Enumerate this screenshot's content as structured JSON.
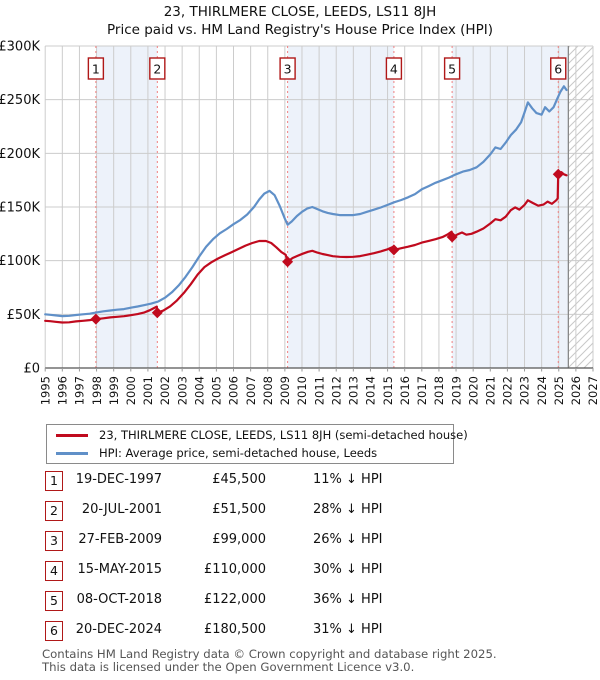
{
  "title": {
    "line1": "23, THIRLMERE CLOSE, LEEDS, LS11 8JH",
    "line2": "Price paid vs. HM Land Registry's House Price Index (HPI)"
  },
  "legend": [
    {
      "label": "23, THIRLMERE CLOSE, LEEDS, LS11 8JH (semi-detached house)",
      "color": "#c00a1e"
    },
    {
      "label": "HPI: Average price, semi-detached house, Leeds",
      "color": "#6090c8"
    }
  ],
  "footer": {
    "line1": "Contains HM Land Registry data © Crown copyright and database right 2025.",
    "line2": "This data is licensed under the Open Government Licence v3.0."
  },
  "colors": {
    "price_line": "#c00a1e",
    "hpi_line": "#6090c8",
    "sale_dashed_line": "#f08080",
    "marker_box_border": "#b01818",
    "shaded_band": "#edf2fa",
    "gridline": "#cccccc",
    "axis": "#555555",
    "hatch": "#c8c8c8",
    "hatch_edge": "#888888"
  },
  "chart_data": {
    "type": "line",
    "title": "Price paid vs. HM Land Registry's House Price Index (HPI)",
    "units": "GBP thousands",
    "x_range": [
      1995,
      2027
    ],
    "ylim": [
      0,
      300
    ],
    "y_ticks": [
      {
        "v": 0,
        "label": "£0"
      },
      {
        "v": 50,
        "label": "£50K"
      },
      {
        "v": 100,
        "label": "£100K"
      },
      {
        "v": 150,
        "label": "£150K"
      },
      {
        "v": 200,
        "label": "£200K"
      },
      {
        "v": 250,
        "label": "£250K"
      },
      {
        "v": 300,
        "label": "£300K"
      }
    ],
    "grid": true,
    "legend_position": "below",
    "future_hatch_start": 2025.56,
    "data_end": 2025.45,
    "shaded_bands": [
      [
        1997.96,
        2001.55
      ],
      [
        2009.16,
        2015.37
      ],
      [
        2018.77,
        2025.56
      ]
    ],
    "sales": [
      {
        "n": "1",
        "date": "19-DEC-1997",
        "price_label": "£45,500",
        "vs_hpi": "11% ↓ HPI",
        "year": 1997.96,
        "price_k": 45.5
      },
      {
        "n": "2",
        "date": "20-JUL-2001",
        "price_label": "£51,500",
        "vs_hpi": "28% ↓ HPI",
        "year": 2001.55,
        "price_k": 51.5
      },
      {
        "n": "3",
        "date": "27-FEB-2009",
        "price_label": "£99,000",
        "vs_hpi": "26% ↓ HPI",
        "year": 2009.16,
        "price_k": 99
      },
      {
        "n": "4",
        "date": "15-MAY-2015",
        "price_label": "£110,000",
        "vs_hpi": "30% ↓ HPI",
        "year": 2015.37,
        "price_k": 110
      },
      {
        "n": "5",
        "date": "08-OCT-2018",
        "price_label": "£122,000",
        "vs_hpi": "36% ↓ HPI",
        "year": 2018.77,
        "price_k": 122
      },
      {
        "n": "6",
        "date": "20-DEC-2024",
        "price_label": "£180,500",
        "vs_hpi": "31% ↓ HPI",
        "year": 2024.97,
        "price_k": 180.5
      }
    ],
    "series": [
      {
        "name": "23, THIRLMERE CLOSE, LEEDS, LS11 8JH (semi-detached house)",
        "color": "#c00a1e",
        "points": [
          [
            1995,
            44
          ],
          [
            1995.3,
            43.6
          ],
          [
            1995.6,
            43
          ],
          [
            1996,
            42.4
          ],
          [
            1996.4,
            42.6
          ],
          [
            1996.8,
            43.4
          ],
          [
            1997.2,
            44
          ],
          [
            1997.6,
            44.6
          ],
          [
            1997.96,
            45.5
          ],
          [
            1998.4,
            46.3
          ],
          [
            1998.8,
            47.1
          ],
          [
            1999.2,
            47.7
          ],
          [
            1999.6,
            48.3
          ],
          [
            2000,
            49.2
          ],
          [
            2000.4,
            50.2
          ],
          [
            2000.8,
            51.8
          ],
          [
            2001.1,
            53.8
          ],
          [
            2001.35,
            55.8
          ],
          [
            2001.52,
            57.2
          ],
          [
            2001.55,
            51.5
          ],
          [
            2001.9,
            53.5
          ],
          [
            2002.3,
            57.5
          ],
          [
            2002.7,
            63
          ],
          [
            2003.1,
            70
          ],
          [
            2003.5,
            78
          ],
          [
            2003.9,
            87
          ],
          [
            2004.3,
            94
          ],
          [
            2004.7,
            98.5
          ],
          [
            2005.1,
            102
          ],
          [
            2005.5,
            105
          ],
          [
            2005.9,
            108
          ],
          [
            2006.3,
            111
          ],
          [
            2006.7,
            114
          ],
          [
            2007.1,
            116.5
          ],
          [
            2007.5,
            118.3
          ],
          [
            2007.9,
            118.3
          ],
          [
            2008.2,
            116.5
          ],
          [
            2008.5,
            112.5
          ],
          [
            2008.8,
            108
          ],
          [
            2009.05,
            105.5
          ],
          [
            2009.16,
            99
          ],
          [
            2009.45,
            102.5
          ],
          [
            2009.75,
            104.5
          ],
          [
            2010.05,
            106.5
          ],
          [
            2010.35,
            108.3
          ],
          [
            2010.6,
            109.2
          ],
          [
            2010.9,
            107.5
          ],
          [
            2011.2,
            106.2
          ],
          [
            2011.5,
            105.2
          ],
          [
            2011.8,
            104.2
          ],
          [
            2012.2,
            103.6
          ],
          [
            2012.6,
            103.4
          ],
          [
            2013,
            103.6
          ],
          [
            2013.4,
            104.3
          ],
          [
            2013.8,
            105.6
          ],
          [
            2014.2,
            107
          ],
          [
            2014.6,
            108.6
          ],
          [
            2015,
            110.6
          ],
          [
            2015.25,
            112.4
          ],
          [
            2015.34,
            113
          ],
          [
            2015.37,
            110
          ],
          [
            2015.8,
            111.6
          ],
          [
            2016.2,
            113
          ],
          [
            2016.6,
            114.6
          ],
          [
            2017,
            116.8
          ],
          [
            2017.4,
            118.4
          ],
          [
            2017.8,
            120
          ],
          [
            2018.2,
            122
          ],
          [
            2018.5,
            124.4
          ],
          [
            2018.74,
            127
          ],
          [
            2018.77,
            122
          ],
          [
            2019.1,
            124.6
          ],
          [
            2019.35,
            126.2
          ],
          [
            2019.6,
            124.2
          ],
          [
            2019.9,
            125
          ],
          [
            2020.2,
            127
          ],
          [
            2020.6,
            130
          ],
          [
            2021,
            134.6
          ],
          [
            2021.3,
            138.6
          ],
          [
            2021.6,
            137.6
          ],
          [
            2021.9,
            141
          ],
          [
            2022.2,
            147
          ],
          [
            2022.45,
            149.6
          ],
          [
            2022.7,
            147.6
          ],
          [
            2023,
            152
          ],
          [
            2023.2,
            156.2
          ],
          [
            2023.5,
            153.6
          ],
          [
            2023.8,
            151.2
          ],
          [
            2024.1,
            152.2
          ],
          [
            2024.35,
            155
          ],
          [
            2024.6,
            153
          ],
          [
            2024.85,
            156.2
          ],
          [
            2024.94,
            158
          ],
          [
            2024.97,
            180.5
          ],
          [
            2025.15,
            182.5
          ],
          [
            2025.3,
            180.5
          ],
          [
            2025.45,
            179.5
          ]
        ]
      },
      {
        "name": "HPI: Average price, semi-detached house, Leeds",
        "color": "#6090c8",
        "points": [
          [
            1995,
            50
          ],
          [
            1995.3,
            49.6
          ],
          [
            1995.6,
            49
          ],
          [
            1996,
            48.4
          ],
          [
            1996.4,
            48.6
          ],
          [
            1996.8,
            49.4
          ],
          [
            1997.2,
            50
          ],
          [
            1997.6,
            50.6
          ],
          [
            1998,
            51.8
          ],
          [
            1998.4,
            52.8
          ],
          [
            1998.8,
            53.6
          ],
          [
            1999.2,
            54.3
          ],
          [
            1999.6,
            54.9
          ],
          [
            2000,
            56.2
          ],
          [
            2000.4,
            57.3
          ],
          [
            2000.8,
            58.6
          ],
          [
            2001.2,
            60
          ],
          [
            2001.6,
            62
          ],
          [
            2002,
            65.5
          ],
          [
            2002.4,
            70.5
          ],
          [
            2002.8,
            77
          ],
          [
            2003.2,
            85
          ],
          [
            2003.6,
            94
          ],
          [
            2004,
            104
          ],
          [
            2004.4,
            113
          ],
          [
            2004.8,
            120
          ],
          [
            2005.2,
            125.5
          ],
          [
            2005.6,
            129.5
          ],
          [
            2006,
            134
          ],
          [
            2006.4,
            138
          ],
          [
            2006.8,
            143
          ],
          [
            2007.2,
            150
          ],
          [
            2007.5,
            157
          ],
          [
            2007.8,
            162.5
          ],
          [
            2008.1,
            165
          ],
          [
            2008.4,
            161
          ],
          [
            2008.7,
            151
          ],
          [
            2009,
            139
          ],
          [
            2009.16,
            133.5
          ],
          [
            2009.4,
            136.5
          ],
          [
            2009.7,
            141.5
          ],
          [
            2010,
            145.5
          ],
          [
            2010.3,
            148.5
          ],
          [
            2010.6,
            150
          ],
          [
            2010.9,
            148
          ],
          [
            2011.2,
            146
          ],
          [
            2011.5,
            144.5
          ],
          [
            2011.8,
            143.5
          ],
          [
            2012.2,
            142.5
          ],
          [
            2012.6,
            142.5
          ],
          [
            2013,
            142.5
          ],
          [
            2013.4,
            143.5
          ],
          [
            2013.8,
            145.5
          ],
          [
            2014.2,
            147.5
          ],
          [
            2014.6,
            149.5
          ],
          [
            2015,
            152
          ],
          [
            2015.4,
            154.5
          ],
          [
            2015.8,
            156.5
          ],
          [
            2016.2,
            159
          ],
          [
            2016.6,
            162
          ],
          [
            2017,
            166.5
          ],
          [
            2017.4,
            169.5
          ],
          [
            2017.8,
            172.5
          ],
          [
            2018.2,
            175
          ],
          [
            2018.6,
            177.5
          ],
          [
            2019,
            180.5
          ],
          [
            2019.4,
            183
          ],
          [
            2019.8,
            184.5
          ],
          [
            2020.2,
            187
          ],
          [
            2020.6,
            192
          ],
          [
            2021,
            199
          ],
          [
            2021.3,
            205.5
          ],
          [
            2021.6,
            204
          ],
          [
            2021.9,
            210
          ],
          [
            2022.2,
            217
          ],
          [
            2022.5,
            222
          ],
          [
            2022.8,
            229
          ],
          [
            2023,
            238
          ],
          [
            2023.2,
            247.5
          ],
          [
            2023.45,
            242
          ],
          [
            2023.7,
            237.5
          ],
          [
            2024,
            236
          ],
          [
            2024.2,
            243
          ],
          [
            2024.45,
            239
          ],
          [
            2024.7,
            243
          ],
          [
            2024.9,
            250.5
          ],
          [
            2025.1,
            257.5
          ],
          [
            2025.3,
            262.5
          ],
          [
            2025.45,
            259
          ]
        ]
      }
    ]
  }
}
